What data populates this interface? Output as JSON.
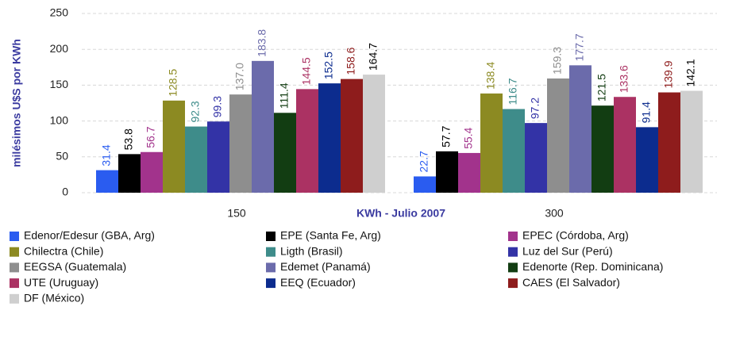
{
  "chart_data": {
    "type": "bar",
    "y_label": "milésimos U$S por KWh",
    "x_label": "KWh - Julio 2007",
    "categories": [
      "150",
      "300"
    ],
    "ylim": [
      0,
      250
    ],
    "yticks": [
      0,
      50,
      100,
      150,
      200,
      250
    ],
    "grid": true,
    "series": [
      {
        "name": "Edenor/Edesur (GBA, Arg)",
        "color": "#2a5cf0",
        "values": [
          31.4,
          22.7
        ]
      },
      {
        "name": "EPE (Santa Fe, Arg)",
        "color": "#000000",
        "values": [
          53.8,
          57.7
        ]
      },
      {
        "name": "EPEC (Córdoba, Arg)",
        "color": "#a2338c",
        "values": [
          56.7,
          55.4
        ]
      },
      {
        "name": "Chilectra (Chile)",
        "color": "#8c8a22",
        "values": [
          128.5,
          138.4
        ]
      },
      {
        "name": "Ligth (Brasil)",
        "color": "#3e8c8a",
        "values": [
          92.3,
          116.7
        ]
      },
      {
        "name": "Luz del Sur (Perú)",
        "color": "#3333a6",
        "values": [
          99.3,
          97.2
        ]
      },
      {
        "name": "EEGSA (Guatemala)",
        "color": "#8e8e8e",
        "values": [
          137.0,
          159.3
        ],
        "value_labels": [
          "137.0",
          "159.3"
        ]
      },
      {
        "name": "Edemet (Panamá)",
        "color": "#6b6bab",
        "values": [
          183.8,
          177.7
        ]
      },
      {
        "name": "Edenorte (Rep. Dominicana)",
        "color": "#123d12",
        "values": [
          111.4,
          121.5
        ]
      },
      {
        "name": "UTE (Uruguay)",
        "color": "#ab3263",
        "values": [
          144.5,
          133.6
        ]
      },
      {
        "name": "EEQ (Ecuador)",
        "color": "#0c2c8e",
        "values": [
          152.5,
          91.4
        ]
      },
      {
        "name": "CAES (El Salvador)",
        "color": "#8e1c1c",
        "values": [
          158.6,
          139.9
        ]
      },
      {
        "name": "DF (México)",
        "color": "#cfcfcf",
        "label_color": "#000000",
        "values": [
          164.7,
          142.1
        ]
      }
    ]
  }
}
